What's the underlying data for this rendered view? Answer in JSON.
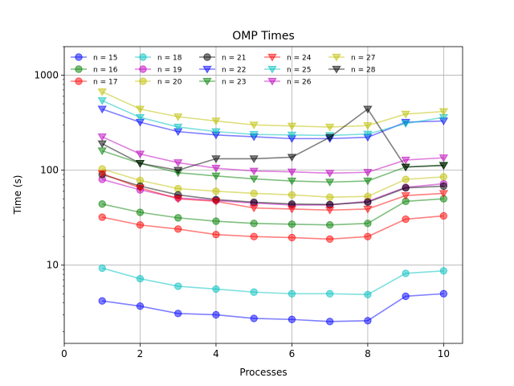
{
  "chart_data": {
    "type": "line",
    "title": "OMP Times",
    "xlabel": "Processes",
    "ylabel": "Time (s)",
    "xlim": [
      0,
      10.5
    ],
    "ylim": [
      1.5,
      2000
    ],
    "yscale": "log",
    "grid": true,
    "legend_position": "top",
    "x_ticks": [
      0,
      2,
      4,
      6,
      8,
      10
    ],
    "x_tick_labels": [
      "0",
      "2",
      "4",
      "6",
      "8",
      "10"
    ],
    "y_ticks": [
      10,
      100,
      1000
    ],
    "y_tick_labels": [
      "10",
      "100",
      "1000"
    ],
    "x": [
      1,
      2,
      3,
      4,
      5,
      6,
      7,
      8,
      9,
      10
    ],
    "series": [
      {
        "name": "n = 15",
        "color": "#0000ff",
        "marker": "circle",
        "values": [
          4.2,
          3.7,
          3.1,
          3.0,
          2.75,
          2.68,
          2.55,
          2.6,
          4.7,
          5.0
        ]
      },
      {
        "name": "n = 16",
        "color": "#008000",
        "marker": "circle",
        "values": [
          44,
          36,
          31.5,
          29,
          27.5,
          27,
          26.5,
          27.5,
          47,
          50
        ]
      },
      {
        "name": "n = 17",
        "color": "#ff0000",
        "marker": "circle",
        "values": [
          32,
          26.5,
          24,
          21,
          20,
          19.5,
          18.8,
          20,
          30.5,
          33
        ]
      },
      {
        "name": "n = 18",
        "color": "#00bfbf",
        "marker": "circle",
        "values": [
          9.3,
          7.2,
          6.0,
          5.6,
          5.2,
          5.0,
          5.0,
          4.9,
          8.2,
          8.7
        ]
      },
      {
        "name": "n = 19",
        "color": "#bf00bf",
        "marker": "circle",
        "values": [
          80,
          62,
          51,
          48,
          45,
          43,
          43,
          47,
          66,
          72
        ]
      },
      {
        "name": "n = 20",
        "color": "#bfbf00",
        "marker": "circle",
        "values": [
          103,
          78,
          64,
          60,
          57,
          55,
          52,
          53,
          80,
          85
        ]
      },
      {
        "name": "n = 21",
        "color": "#000000",
        "marker": "circle",
        "values": [
          90,
          68,
          55,
          49,
          46,
          44,
          43.5,
          46,
          65,
          68
        ]
      },
      {
        "name": "n = 22",
        "color": "#0000ff",
        "marker": "triangle-down",
        "values": [
          440,
          320,
          255,
          235,
          225,
          215,
          215,
          222,
          320,
          330
        ]
      },
      {
        "name": "n = 23",
        "color": "#008000",
        "marker": "triangle-down",
        "values": [
          160,
          118,
          94,
          87,
          81,
          77,
          75,
          77,
          108,
          113
        ]
      },
      {
        "name": "n = 24",
        "color": "#ff0000",
        "marker": "triangle-down",
        "values": [
          92,
          65,
          50,
          47,
          40,
          39,
          38,
          39,
          54,
          57
        ]
      },
      {
        "name": "n = 25",
        "color": "#00bfbf",
        "marker": "triangle-down",
        "values": [
          540,
          360,
          285,
          255,
          238,
          235,
          232,
          240,
          310,
          360
        ]
      },
      {
        "name": "n = 26",
        "color": "#bf00bf",
        "marker": "triangle-down",
        "values": [
          225,
          148,
          120,
          105,
          98,
          96,
          93,
          95,
          128,
          135
        ]
      },
      {
        "name": "n = 27",
        "color": "#bfbf00",
        "marker": "triangle-down",
        "values": [
          670,
          440,
          365,
          330,
          300,
          292,
          285,
          295,
          390,
          415
        ]
      },
      {
        "name": "n = 28",
        "color": "#000000",
        "marker": "triangle-down",
        "values": [
          190,
          118,
          100,
          132,
          132,
          137,
          222,
          440,
          108,
          112
        ]
      }
    ]
  }
}
